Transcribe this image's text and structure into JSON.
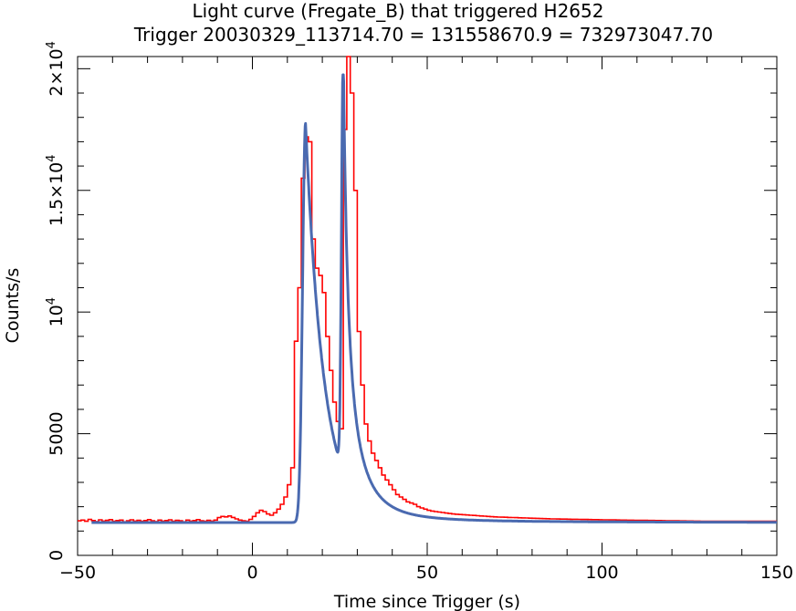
{
  "chart_data": {
    "type": "line",
    "title": "Light curve (Fregate_B) that triggered H2652",
    "subtitle": "Trigger 20030329_113714.70 = 131558670.9 = 732973047.70",
    "xlabel": "Time since Trigger (s)",
    "ylabel": "Counts/s",
    "xlim": [
      -50,
      150
    ],
    "ylim": [
      0,
      20500
    ],
    "x_ticks": [
      {
        "value": -50,
        "label": "−50"
      },
      {
        "value": 0,
        "label": "0"
      },
      {
        "value": 50,
        "label": "50"
      },
      {
        "value": 100,
        "label": "100"
      },
      {
        "value": 150,
        "label": "150"
      }
    ],
    "y_ticks": [
      {
        "value": 0,
        "label": "0"
      },
      {
        "value": 5000,
        "label": "5000"
      },
      {
        "value": 10000,
        "label": "10",
        "exp": "4"
      },
      {
        "value": 15000,
        "label": "1.5×10",
        "exp": "4"
      },
      {
        "value": 20000,
        "label": "2×10",
        "exp": "4"
      }
    ],
    "grid": false,
    "series": [
      {
        "kind": "step",
        "color": "#ff0000",
        "bin_width": 1,
        "x_start": -50,
        "values": [
          1420,
          1450,
          1400,
          1480,
          1430,
          1390,
          1460,
          1410,
          1440,
          1470,
          1400,
          1430,
          1450,
          1380,
          1420,
          1460,
          1410,
          1440,
          1400,
          1430,
          1470,
          1420,
          1390,
          1450,
          1410,
          1430,
          1460,
          1400,
          1440,
          1420,
          1380,
          1450,
          1410,
          1430,
          1470,
          1420,
          1400,
          1440,
          1410,
          1450,
          1550,
          1600,
          1580,
          1620,
          1560,
          1500,
          1450,
          1420,
          1400,
          1480,
          1600,
          1750,
          1850,
          1800,
          1700,
          1650,
          1750,
          1900,
          2100,
          2400,
          2900,
          3600,
          8800,
          11000,
          15500,
          17200,
          17000,
          13000,
          11800,
          11500,
          10800,
          9000,
          7600,
          6300,
          5500,
          5200,
          17500,
          20500,
          19000,
          15000,
          9200,
          7000,
          5400,
          4700,
          4200,
          3900,
          3600,
          3300,
          3100,
          2900,
          2700,
          2500,
          2400,
          2300,
          2200,
          2150,
          2100,
          2000,
          1950,
          1900,
          1850,
          1820,
          1800,
          1780,
          1760,
          1740,
          1720,
          1700,
          1690,
          1680,
          1670,
          1660,
          1650,
          1640,
          1630,
          1620,
          1610,
          1600,
          1590,
          1580,
          1575,
          1570,
          1565,
          1560,
          1555,
          1550,
          1545,
          1540,
          1535,
          1530,
          1525,
          1520,
          1515,
          1510,
          1505,
          1500,
          1498,
          1495,
          1492,
          1490,
          1488,
          1485,
          1483,
          1480,
          1478,
          1475,
          1473,
          1470,
          1468,
          1465,
          1463,
          1460,
          1458,
          1456,
          1454,
          1452,
          1450,
          1448,
          1446,
          1444,
          1442,
          1440,
          1438,
          1436,
          1434,
          1432,
          1430,
          1428,
          1426,
          1424,
          1422,
          1420,
          1418,
          1416,
          1414,
          1412,
          1410,
          1408,
          1406,
          1404,
          1402,
          1400,
          1400,
          1400,
          1400,
          1400,
          1400,
          1400,
          1400,
          1400,
          1400,
          1400,
          1400,
          1400,
          1400,
          1400,
          1400,
          1400,
          1400,
          1400
        ]
      },
      {
        "kind": "model",
        "color": "#4a6ab0",
        "baseline": 1350,
        "pulses": [
          {
            "peak_time": 15.2,
            "amplitude": 16400,
            "rise": 1.2,
            "decay": 5.2
          },
          {
            "peak_time": 26.0,
            "amplitude": 17300,
            "rise": 0.7,
            "decay": 2.6,
            "tail_power_decay": 4.0
          }
        ]
      }
    ]
  }
}
